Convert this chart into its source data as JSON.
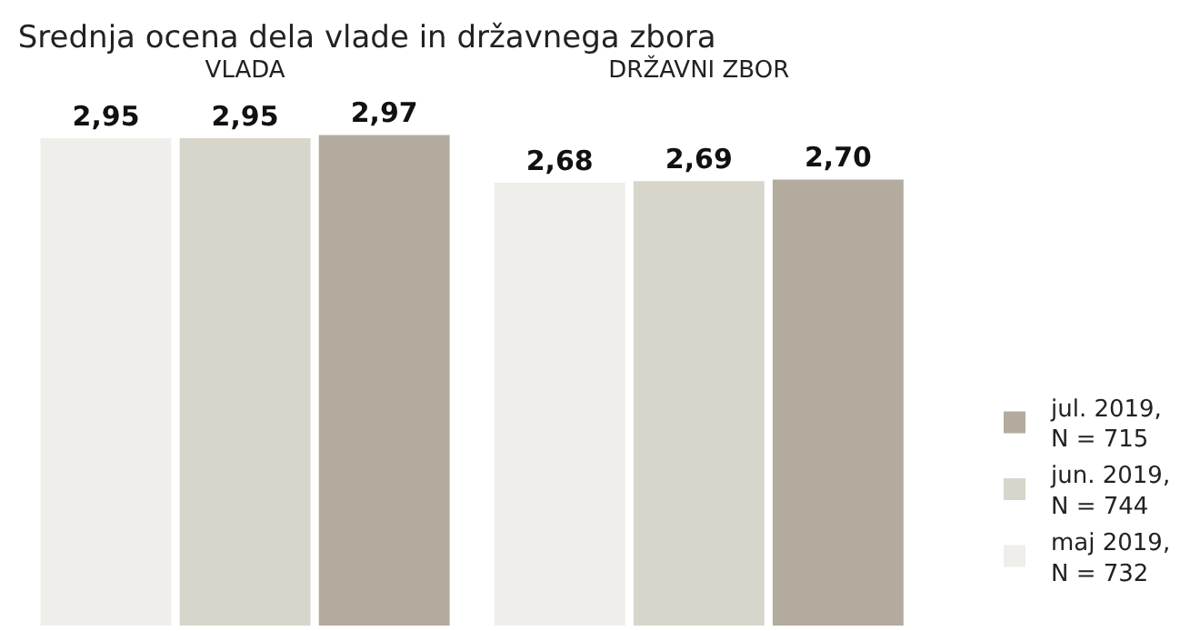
{
  "chart_data": {
    "type": "bar",
    "title": "Srednja ocena dela vlade in državnega zbora",
    "categories": [
      "VLADA",
      "DRŽAVNI ZBOR"
    ],
    "series": [
      {
        "name": "maj 2019,\nN = 732",
        "color": "#efeeea",
        "values": [
          2.95,
          2.68
        ],
        "value_labels": [
          "2,95",
          "2,68"
        ]
      },
      {
        "name": "jun. 2019,\nN = 744",
        "color": "#d8d5cb",
        "values": [
          2.95,
          2.69
        ],
        "value_labels": [
          "2,95",
          "2,69"
        ]
      },
      {
        "name": "jul. 2019,\nN = 715",
        "color": "#b3ab9d",
        "values": [
          2.97,
          2.7
        ],
        "value_labels": [
          "2,97",
          "2,70"
        ]
      }
    ],
    "tick_labels": "x",
    "legend": "right"
  }
}
